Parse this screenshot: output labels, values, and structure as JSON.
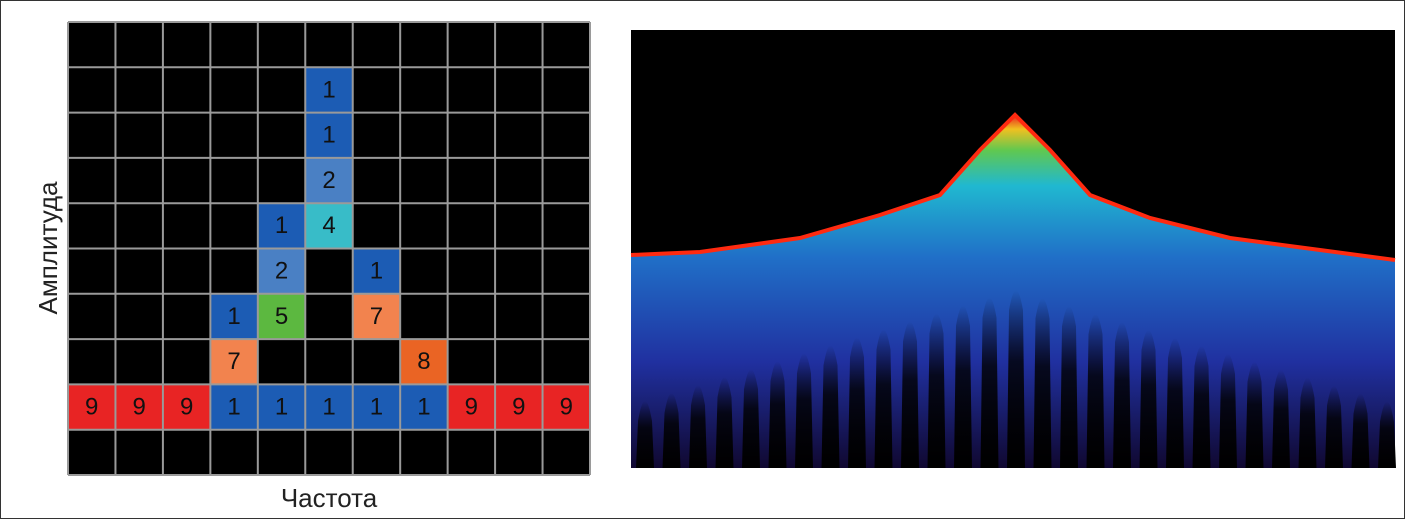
{
  "axes": {
    "y_label": "Амплитуда",
    "x_label": "Частота"
  },
  "grid": {
    "rows": [
      [
        null,
        null,
        null,
        null,
        null,
        null,
        null,
        null,
        null,
        null,
        null
      ],
      [
        null,
        null,
        null,
        null,
        null,
        {
          "value": 1,
          "color": "#1c5cb4"
        },
        null,
        null,
        null,
        null,
        null
      ],
      [
        null,
        null,
        null,
        null,
        null,
        {
          "value": 1,
          "color": "#1c5cb4"
        },
        null,
        null,
        null,
        null,
        null
      ],
      [
        null,
        null,
        null,
        null,
        null,
        {
          "value": 2,
          "color": "#4a80c4"
        },
        null,
        null,
        null,
        null,
        null
      ],
      [
        null,
        null,
        null,
        null,
        {
          "value": 1,
          "color": "#1c5cb4"
        },
        {
          "value": 4,
          "color": "#38bcc8"
        },
        null,
        null,
        null,
        null,
        null
      ],
      [
        null,
        null,
        null,
        null,
        {
          "value": 2,
          "color": "#4a80c4"
        },
        null,
        {
          "value": 1,
          "color": "#1c5cb4"
        },
        null,
        null,
        null,
        null
      ],
      [
        null,
        null,
        null,
        {
          "value": 1,
          "color": "#1c5cb4"
        },
        {
          "value": 5,
          "color": "#5cb840"
        },
        null,
        {
          "value": 7,
          "color": "#f2834e"
        },
        null,
        null,
        null,
        null
      ],
      [
        null,
        null,
        null,
        {
          "value": 7,
          "color": "#f2834e"
        },
        null,
        null,
        null,
        {
          "value": 8,
          "color": "#ea6424"
        },
        null,
        null,
        null
      ],
      [
        {
          "value": 9,
          "color": "#e82424"
        },
        {
          "value": 9,
          "color": "#e82424"
        },
        {
          "value": 9,
          "color": "#e82424"
        },
        {
          "value": 1,
          "color": "#1c5cb4"
        },
        {
          "value": 1,
          "color": "#1c5cb4"
        },
        {
          "value": 1,
          "color": "#1c5cb4"
        },
        {
          "value": 1,
          "color": "#1c5cb4"
        },
        {
          "value": 1,
          "color": "#1c5cb4"
        },
        {
          "value": 9,
          "color": "#e82424"
        },
        {
          "value": 9,
          "color": "#e82424"
        },
        {
          "value": 9,
          "color": "#e82424"
        }
      ],
      [
        null,
        null,
        null,
        null,
        null,
        null,
        null,
        null,
        null,
        null,
        null
      ]
    ]
  }
}
